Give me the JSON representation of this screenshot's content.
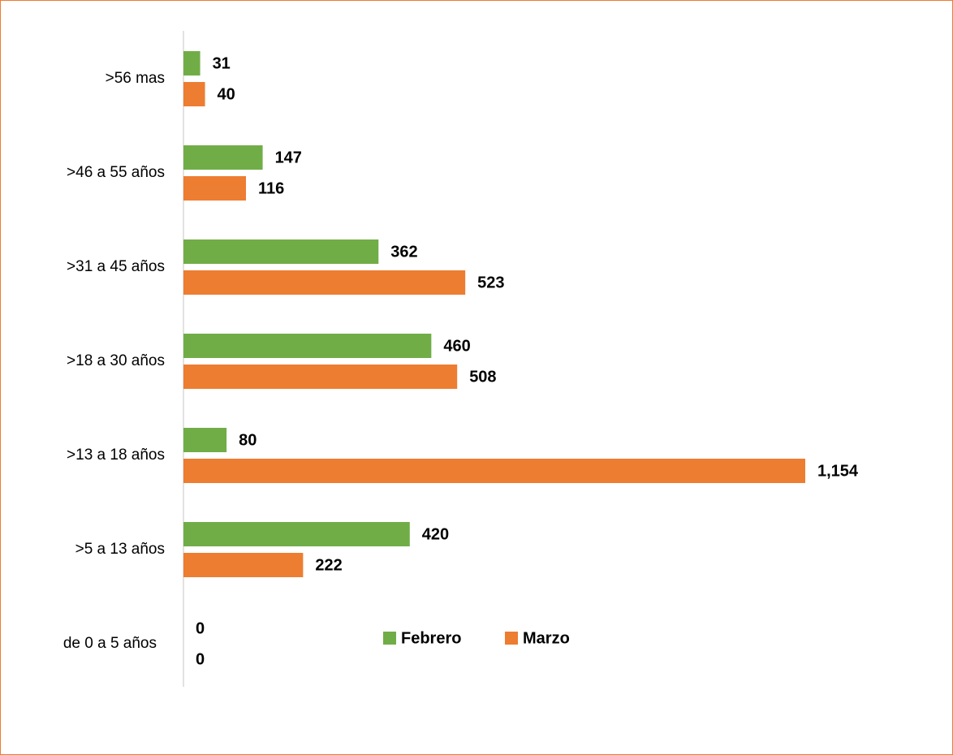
{
  "chart_data": {
    "type": "bar",
    "orientation": "horizontal",
    "categories": [
      ">56 mas",
      ">46 a 55 años",
      ">31 a 45 años",
      ">18 a 30 años",
      ">13 a 18 años",
      ">5 a 13 años",
      "de 0 a 5 años"
    ],
    "series": [
      {
        "name": "Febrero",
        "color": "#70ad47",
        "values": [
          31,
          147,
          362,
          460,
          80,
          420,
          0
        ]
      },
      {
        "name": "Marzo",
        "color": "#ed7d31",
        "values": [
          40,
          116,
          523,
          508,
          1154,
          222,
          0
        ],
        "value_labels": [
          "40",
          "116",
          "523",
          "508",
          "1,154",
          "222",
          "0"
        ]
      }
    ],
    "legend": "bottom"
  }
}
